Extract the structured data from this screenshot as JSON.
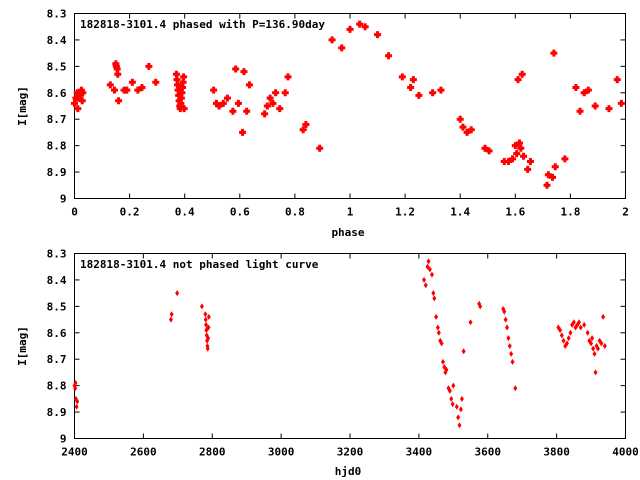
{
  "chart_data": [
    {
      "type": "scatter",
      "title": "182818-3101.4 phased with P=136.90day",
      "xlabel": "phase",
      "ylabel": "I[mag]",
      "xlim": [
        0,
        2
      ],
      "ylim": [
        9,
        8.3
      ],
      "y_inverted": true,
      "xticks": [
        "0",
        "0.2",
        "0.4",
        "0.6",
        "0.8",
        "1",
        "1.2",
        "1.4",
        "1.6",
        "1.8",
        "2"
      ],
      "xtick_values": [
        0,
        0.2,
        0.4,
        0.6,
        0.8,
        1,
        1.2,
        1.4,
        1.6,
        1.8,
        2
      ],
      "yticks": [
        "8.3",
        "8.4",
        "8.5",
        "8.6",
        "8.7",
        "8.8",
        "8.9",
        "9"
      ],
      "ytick_values": [
        8.3,
        8.4,
        8.5,
        8.6,
        8.7,
        8.8,
        8.9,
        9.0
      ],
      "marker_color": "#ff0000",
      "grid": false,
      "points": [
        [
          0.0,
          8.64
        ],
        [
          0.005,
          8.62
        ],
        [
          0.01,
          8.6
        ],
        [
          0.012,
          8.66
        ],
        [
          0.015,
          8.62
        ],
        [
          0.02,
          8.61
        ],
        [
          0.025,
          8.59
        ],
        [
          0.028,
          8.63
        ],
        [
          0.03,
          8.6
        ],
        [
          0.13,
          8.57
        ],
        [
          0.145,
          8.59
        ],
        [
          0.15,
          8.49
        ],
        [
          0.152,
          8.5
        ],
        [
          0.155,
          8.51
        ],
        [
          0.157,
          8.53
        ],
        [
          0.16,
          8.63
        ],
        [
          0.18,
          8.59
        ],
        [
          0.19,
          8.59
        ],
        [
          0.21,
          8.56
        ],
        [
          0.23,
          8.59
        ],
        [
          0.245,
          8.58
        ],
        [
          0.27,
          8.5
        ],
        [
          0.295,
          8.56
        ],
        [
          0.37,
          8.53
        ],
        [
          0.372,
          8.55
        ],
        [
          0.374,
          8.57
        ],
        [
          0.376,
          8.59
        ],
        [
          0.378,
          8.61
        ],
        [
          0.38,
          8.63
        ],
        [
          0.382,
          8.65
        ],
        [
          0.384,
          8.66
        ],
        [
          0.386,
          8.64
        ],
        [
          0.388,
          8.62
        ],
        [
          0.39,
          8.6
        ],
        [
          0.392,
          8.58
        ],
        [
          0.394,
          8.56
        ],
        [
          0.396,
          8.54
        ],
        [
          0.398,
          8.66
        ],
        [
          0.505,
          8.59
        ],
        [
          0.515,
          8.64
        ],
        [
          0.525,
          8.65
        ],
        [
          0.54,
          8.64
        ],
        [
          0.555,
          8.62
        ],
        [
          0.575,
          8.67
        ],
        [
          0.585,
          8.51
        ],
        [
          0.595,
          8.64
        ],
        [
          0.61,
          8.75
        ],
        [
          0.615,
          8.52
        ],
        [
          0.625,
          8.67
        ],
        [
          0.635,
          8.57
        ],
        [
          0.69,
          8.68
        ],
        [
          0.7,
          8.65
        ],
        [
          0.71,
          8.62
        ],
        [
          0.72,
          8.64
        ],
        [
          0.73,
          8.6
        ],
        [
          0.745,
          8.66
        ],
        [
          0.765,
          8.6
        ],
        [
          0.775,
          8.54
        ],
        [
          0.83,
          8.74
        ],
        [
          0.84,
          8.72
        ],
        [
          0.89,
          8.81
        ],
        [
          0.935,
          8.4
        ],
        [
          0.97,
          8.43
        ],
        [
          1.0,
          8.36
        ],
        [
          1.035,
          8.34
        ],
        [
          1.055,
          8.35
        ],
        [
          1.1,
          8.38
        ],
        [
          1.14,
          8.46
        ],
        [
          1.19,
          8.54
        ],
        [
          1.22,
          8.58
        ],
        [
          1.23,
          8.55
        ],
        [
          1.25,
          8.61
        ],
        [
          1.3,
          8.6
        ],
        [
          1.33,
          8.59
        ],
        [
          1.4,
          8.7
        ],
        [
          1.41,
          8.73
        ],
        [
          1.425,
          8.75
        ],
        [
          1.44,
          8.74
        ],
        [
          1.49,
          8.81
        ],
        [
          1.505,
          8.82
        ],
        [
          1.56,
          8.86
        ],
        [
          1.575,
          8.86
        ],
        [
          1.59,
          8.85
        ],
        [
          1.6,
          8.8
        ],
        [
          1.605,
          8.83
        ],
        [
          1.615,
          8.79
        ],
        [
          1.62,
          8.81
        ],
        [
          1.63,
          8.84
        ],
        [
          1.645,
          8.89
        ],
        [
          1.655,
          8.86
        ],
        [
          1.61,
          8.55
        ],
        [
          1.625,
          8.53
        ],
        [
          1.715,
          8.95
        ],
        [
          1.72,
          8.91
        ],
        [
          1.735,
          8.92
        ],
        [
          1.74,
          8.45
        ],
        [
          1.745,
          8.88
        ],
        [
          1.78,
          8.85
        ],
        [
          1.82,
          8.58
        ],
        [
          1.835,
          8.67
        ],
        [
          1.85,
          8.6
        ],
        [
          1.865,
          8.59
        ],
        [
          1.89,
          8.65
        ],
        [
          1.94,
          8.66
        ],
        [
          1.97,
          8.55
        ],
        [
          1.985,
          8.64
        ]
      ]
    },
    {
      "type": "scatter",
      "title": "182818-3101.4 not phased light curve",
      "xlabel": "hjd0",
      "ylabel": "I[mag]",
      "xlim": [
        2400,
        4000
      ],
      "ylim": [
        9,
        8.3
      ],
      "y_inverted": true,
      "xticks": [
        "2400",
        "2600",
        "2800",
        "3000",
        "3200",
        "3400",
        "3600",
        "3800",
        "4000"
      ],
      "xtick_values": [
        2400,
        2600,
        2800,
        3000,
        3200,
        3400,
        3600,
        3800,
        4000
      ],
      "yticks": [
        "8.3",
        "8.4",
        "8.5",
        "8.6",
        "8.7",
        "8.8",
        "8.9",
        "9"
      ],
      "ytick_values": [
        8.3,
        8.4,
        8.5,
        8.6,
        8.7,
        8.8,
        8.9,
        9.0
      ],
      "marker_color": "#ff0000",
      "grid": false,
      "points": [
        [
          2400,
          8.8
        ],
        [
          2402,
          8.81
        ],
        [
          2404,
          8.85
        ],
        [
          2406,
          8.88
        ],
        [
          2408,
          8.86
        ],
        [
          2403,
          8.79
        ],
        [
          2680,
          8.55
        ],
        [
          2682,
          8.53
        ],
        [
          2698,
          8.45
        ],
        [
          2770,
          8.5
        ],
        [
          2780,
          8.53
        ],
        [
          2781,
          8.55
        ],
        [
          2782,
          8.57
        ],
        [
          2783,
          8.59
        ],
        [
          2784,
          8.61
        ],
        [
          2785,
          8.63
        ],
        [
          2786,
          8.65
        ],
        [
          2787,
          8.66
        ],
        [
          2788,
          8.62
        ],
        [
          2789,
          8.58
        ],
        [
          2790,
          8.54
        ],
        [
          3415,
          8.4
        ],
        [
          3420,
          8.42
        ],
        [
          3425,
          8.35
        ],
        [
          3428,
          8.33
        ],
        [
          3432,
          8.36
        ],
        [
          3438,
          8.38
        ],
        [
          3442,
          8.45
        ],
        [
          3445,
          8.47
        ],
        [
          3450,
          8.54
        ],
        [
          3455,
          8.58
        ],
        [
          3458,
          8.6
        ],
        [
          3462,
          8.63
        ],
        [
          3466,
          8.64
        ],
        [
          3470,
          8.71
        ],
        [
          3474,
          8.73
        ],
        [
          3477,
          8.75
        ],
        [
          3480,
          8.74
        ],
        [
          3486,
          8.81
        ],
        [
          3490,
          8.82
        ],
        [
          3494,
          8.85
        ],
        [
          3498,
          8.87
        ],
        [
          3500,
          8.8
        ],
        [
          3510,
          8.88
        ],
        [
          3514,
          8.92
        ],
        [
          3518,
          8.95
        ],
        [
          3522,
          8.89
        ],
        [
          3525,
          8.85
        ],
        [
          3530,
          8.67
        ],
        [
          3550,
          8.56
        ],
        [
          3575,
          8.49
        ],
        [
          3578,
          8.5
        ],
        [
          3645,
          8.51
        ],
        [
          3648,
          8.52
        ],
        [
          3652,
          8.55
        ],
        [
          3656,
          8.58
        ],
        [
          3660,
          8.62
        ],
        [
          3664,
          8.65
        ],
        [
          3668,
          8.68
        ],
        [
          3672,
          8.71
        ],
        [
          3680,
          8.81
        ],
        [
          3805,
          8.58
        ],
        [
          3810,
          8.59
        ],
        [
          3815,
          8.61
        ],
        [
          3820,
          8.63
        ],
        [
          3825,
          8.65
        ],
        [
          3830,
          8.64
        ],
        [
          3835,
          8.62
        ],
        [
          3840,
          8.6
        ],
        [
          3845,
          8.57
        ],
        [
          3850,
          8.56
        ],
        [
          3855,
          8.58
        ],
        [
          3860,
          8.57
        ],
        [
          3865,
          8.56
        ],
        [
          3870,
          8.58
        ],
        [
          3880,
          8.57
        ],
        [
          3890,
          8.6
        ],
        [
          3895,
          8.63
        ],
        [
          3900,
          8.64
        ],
        [
          3903,
          8.62
        ],
        [
          3906,
          8.66
        ],
        [
          3910,
          8.68
        ],
        [
          3913,
          8.75
        ],
        [
          3916,
          8.65
        ],
        [
          3920,
          8.66
        ],
        [
          3925,
          8.63
        ],
        [
          3930,
          8.64
        ],
        [
          3935,
          8.54
        ],
        [
          3940,
          8.65
        ]
      ]
    }
  ]
}
